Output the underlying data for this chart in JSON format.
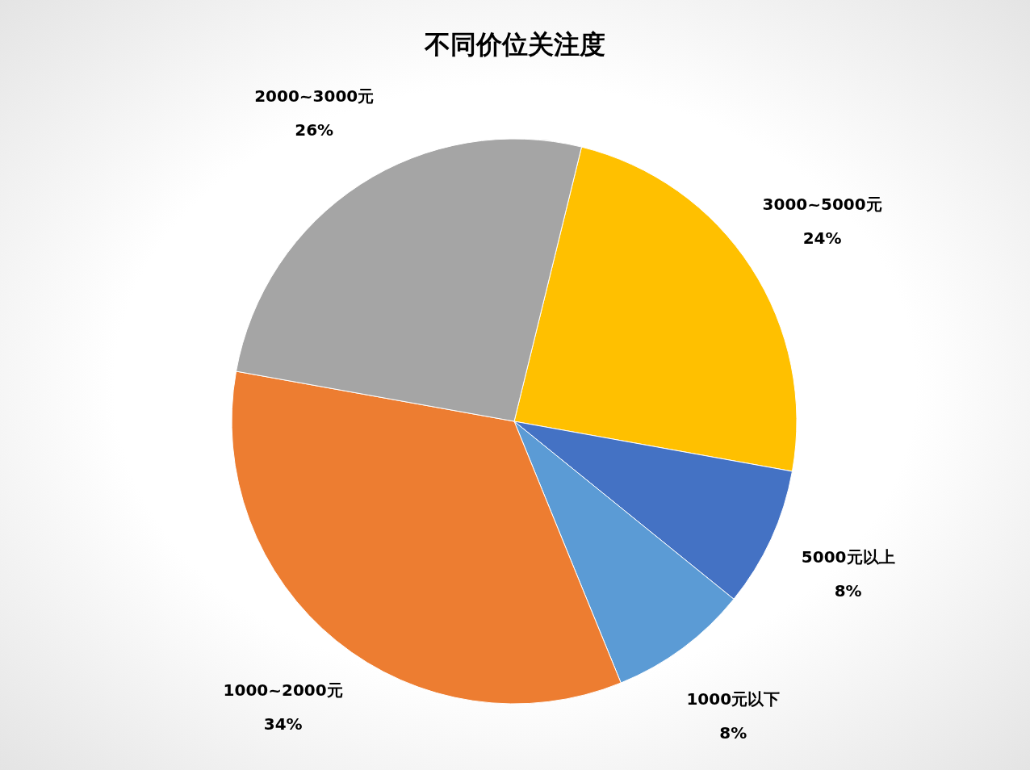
{
  "chart_data": {
    "type": "pie",
    "title": "不同价位关注度",
    "categories": [
      "3000~5000元",
      "5000元以上",
      "1000元以下",
      "1000~2000元",
      "2000~3000元"
    ],
    "values": [
      24,
      8,
      8,
      34,
      26
    ],
    "value_labels": [
      "24%",
      "8%",
      "8%",
      "34%",
      "26%"
    ],
    "colors": [
      "#ffc000",
      "#4472c4",
      "#5b9bd5",
      "#ed7d31",
      "#a5a5a5"
    ]
  }
}
